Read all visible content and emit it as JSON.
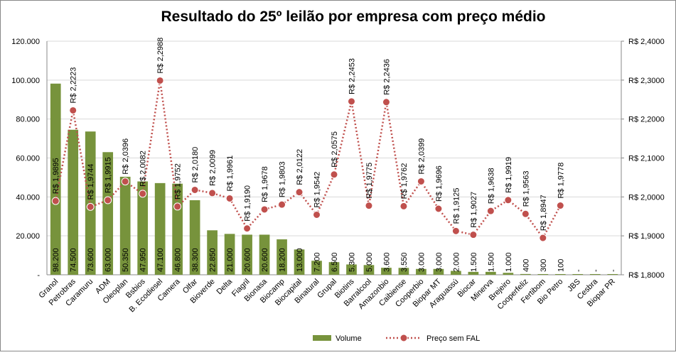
{
  "chart_data": {
    "type": "bar-line",
    "title": "Resultado do 25º leilão por empresa com preço médio",
    "categories": [
      "Granol",
      "Petrobras",
      "Caramuru",
      "ADM",
      "Oleoplan",
      "Bsbios",
      "B. Ecodiesel",
      "Camera",
      "Olfar",
      "Bioverde",
      "Delta",
      "Fiagril",
      "Bionasa",
      "Biocamp",
      "Biocapital",
      "Binatural",
      "Grupal",
      "Biotins",
      "Barralcool",
      "Amazonbio",
      "Caibiense",
      "Cooperbio",
      "Biopar MT",
      "Araguassú",
      "Biocar",
      "Minerva",
      "Brejeiro",
      "Cooperfeliz",
      "Fertibom",
      "Bio Petro",
      "JBS",
      "Cesbra",
      "Biopar PR"
    ],
    "series": [
      {
        "name": "Volume",
        "color": "#77933c",
        "values": [
          98200,
          74500,
          73600,
          63000,
          50350,
          47950,
          47100,
          46800,
          38300,
          22850,
          21000,
          20600,
          20600,
          18200,
          13000,
          7200,
          6500,
          5300,
          5000,
          3600,
          3550,
          3000,
          3000,
          2000,
          1500,
          1500,
          1000,
          400,
          300,
          100,
          0,
          0,
          0
        ],
        "value_labels": [
          "98.200",
          "74.500",
          "73.600",
          "63.000",
          "50.350",
          "47.950",
          "47.100",
          "46.800",
          "38.300",
          "22.850",
          "21.000",
          "20.600",
          "20.600",
          "18.200",
          "13.000",
          "7.200",
          "6.500",
          "5.300",
          "5.000",
          "3.600",
          "3.550",
          "3.000",
          "3.000",
          "2.000",
          "1.500",
          "1.500",
          "1.000",
          "400",
          "300",
          "100",
          "-",
          "-",
          "-"
        ]
      },
      {
        "name": "Preço sem FAL",
        "color": "#c0504d",
        "axis": "y2",
        "values": [
          1.9895,
          2.2223,
          1.9744,
          1.9915,
          2.0396,
          2.0082,
          2.2988,
          1.9752,
          2.018,
          2.0099,
          1.9961,
          1.919,
          1.9678,
          1.9803,
          2.0122,
          1.9542,
          2.0575,
          2.2453,
          1.9775,
          2.2436,
          1.9762,
          2.0399,
          1.9696,
          1.9125,
          1.9027,
          1.9638,
          1.9919,
          1.9563,
          1.8947,
          1.9778,
          null,
          null,
          null
        ],
        "value_labels": [
          "R$ 1,9895",
          "R$ 2,2223",
          "R$ 1,9744",
          "R$ 1,9915",
          "R$ 2,0396",
          "R$ 2,0082",
          "R$ 2,2988",
          "R$ 1,9752",
          "R$ 2,0180",
          "R$ 2,0099",
          "R$ 1,9961",
          "R$ 1,9190",
          "R$ 1,9678",
          "R$ 1,9803",
          "R$ 2,0122",
          "R$ 1,9542",
          "R$ 2,0575",
          "R$ 2,2453",
          "R$ 1,9775",
          "R$ 2,2436",
          "R$ 1,9762",
          "R$ 2,0399",
          "R$ 1,9696",
          "R$ 1,9125",
          "R$ 1,9027",
          "R$ 1,9638",
          "R$ 1,9919",
          "R$ 1,9563",
          "R$ 1,8947",
          "R$ 1,9778",
          null,
          null,
          null
        ]
      }
    ],
    "ylim": [
      0,
      120000
    ],
    "yticks": [
      {
        "value": 0,
        "label": "-"
      },
      {
        "value": 20000,
        "label": "20.000"
      },
      {
        "value": 40000,
        "label": "40.000"
      },
      {
        "value": 60000,
        "label": "60.000"
      },
      {
        "value": 80000,
        "label": "80.000"
      },
      {
        "value": 100000,
        "label": "100.000"
      },
      {
        "value": 120000,
        "label": "120.000"
      }
    ],
    "y2lim": [
      1.8,
      2.4
    ],
    "y2ticks": [
      {
        "value": 1.8,
        "label": "R$ 1,8000"
      },
      {
        "value": 1.9,
        "label": "R$ 1,9000"
      },
      {
        "value": 2.0,
        "label": "R$ 2,0000"
      },
      {
        "value": 2.1,
        "label": "R$ 2,1000"
      },
      {
        "value": 2.2,
        "label": "R$ 2,2000"
      },
      {
        "value": 2.3,
        "label": "R$ 2,3000"
      },
      {
        "value": 2.4,
        "label": "R$ 2,4000"
      }
    ],
    "grid": true,
    "legend": "bottom"
  }
}
